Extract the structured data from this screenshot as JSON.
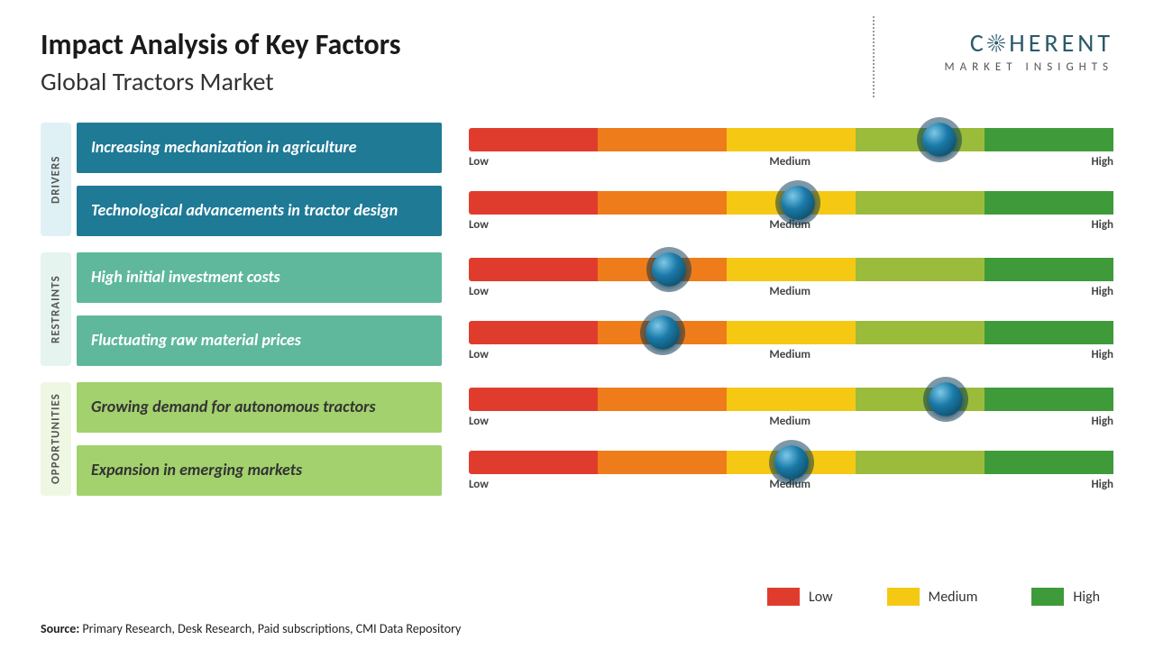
{
  "title": "Impact Analysis of Key Factors",
  "subtitle": "Global Tractors Market",
  "brand": {
    "name": "COHERENT",
    "sub": "MARKET INSIGHTS"
  },
  "gauge": {
    "segment_colors": [
      "#e03c2e",
      "#ef7c1a",
      "#f5c814",
      "#9bbb3b",
      "#3f9b3a"
    ],
    "labels": {
      "low": "Low",
      "medium": "Medium",
      "high": "High"
    },
    "marker_color_outer": "#0a3a50",
    "marker_color_inner": "#1a7aa8"
  },
  "groups": [
    {
      "key": "drivers",
      "label": "DRIVERS",
      "label_bg": "#dff1f5",
      "row_bg": "#1f7a96",
      "text_color": "#ffffff",
      "rows": [
        {
          "factor": "Increasing mechanization in agriculture",
          "marker_pct": 73
        },
        {
          "factor": "Technological advancements in tractor design",
          "marker_pct": 51
        }
      ]
    },
    {
      "key": "restraints",
      "label": "RESTRAINTS",
      "label_bg": "#e6f4ef",
      "row_bg": "#5fb89c",
      "text_color": "#ffffff",
      "rows": [
        {
          "factor": "High initial investment costs",
          "marker_pct": 31
        },
        {
          "factor": "Fluctuating raw material prices",
          "marker_pct": 30
        }
      ]
    },
    {
      "key": "opportunities",
      "label": "OPPORTUNITIES",
      "label_bg": "#eef7e2",
      "row_bg": "#a2d16e",
      "text_color": "#333333",
      "rows": [
        {
          "factor": "Growing demand for autonomous tractors",
          "marker_pct": 74
        },
        {
          "factor": "Expansion in emerging markets",
          "marker_pct": 50
        }
      ]
    }
  ],
  "legend": [
    {
      "label": "Low",
      "color": "#e03c2e"
    },
    {
      "label": "Medium",
      "color": "#f5c814"
    },
    {
      "label": "High",
      "color": "#3f9b3a"
    }
  ],
  "source": {
    "prefix": "Source:",
    "text": " Primary Research, Desk Research, Paid subscriptions, CMI Data Repository"
  }
}
